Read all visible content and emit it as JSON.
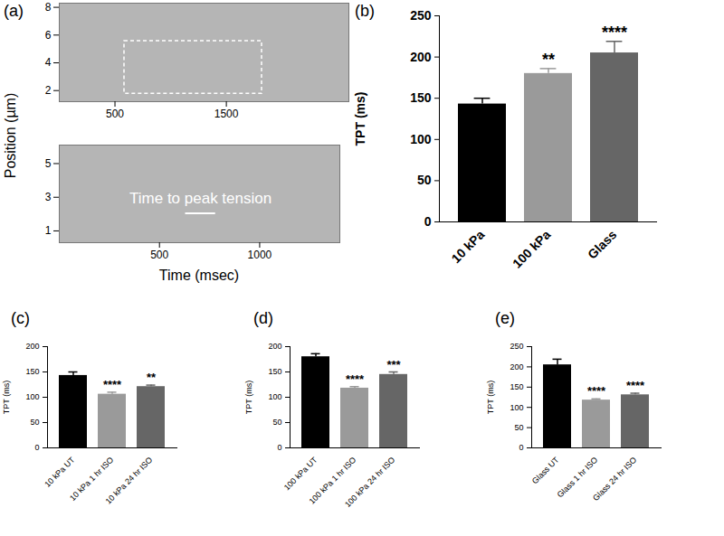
{
  "chart_data": [
    {
      "type": "image",
      "title": "(a)",
      "y_label": "Position (µm)",
      "color": "#b5b5b5",
      "xlim": [
        0,
        2600
      ],
      "xticks": [
        500,
        1500
      ],
      "ylim": [
        1.2,
        8.3
      ],
      "yticks": [
        2,
        4,
        6,
        8
      ]
    },
    {
      "type": "image",
      "x_label": "Time (msec)",
      "color": "#b5b5b5",
      "xlim": [
        0,
        1400
      ],
      "xticks": [
        500,
        1000
      ],
      "ylim": [
        0.3,
        6.1
      ],
      "yticks": [
        1,
        3,
        5
      ],
      "annotations": [
        {
          "text": "Time to peak tension",
          "x1": 630,
          "x2": 780,
          "y": 2.05
        }
      ]
    },
    {
      "type": "bar",
      "title": "(b)",
      "y_label": "TPT (ms)",
      "categories": [
        "10 kPa",
        "100 kPa",
        "Glass"
      ],
      "values": [
        143,
        180,
        205
      ],
      "errors": [
        7,
        6,
        14
      ],
      "significance": [
        null,
        "**",
        "****"
      ],
      "colors": [
        "#000000",
        "#9a9a9a",
        "#666666"
      ],
      "ylim": [
        0,
        250
      ],
      "yticks": [
        0,
        50,
        100,
        150,
        200,
        250
      ]
    },
    {
      "type": "bar",
      "title": "(c)",
      "y_label": "TPT (ms)",
      "categories": [
        "10 kPa UT",
        "10 kPa 1 hr ISO",
        "10 kPa 24 hr ISO"
      ],
      "values": [
        143,
        106,
        121
      ],
      "errors": [
        7,
        4,
        3
      ],
      "significance": [
        null,
        "****",
        "**"
      ],
      "colors": [
        "#000000",
        "#9a9a9a",
        "#666666"
      ],
      "ylim": [
        0,
        200
      ],
      "yticks": [
        0,
        50,
        100,
        150,
        200
      ]
    },
    {
      "type": "bar",
      "title": "(d)",
      "y_label": "TPT (ms)",
      "categories": [
        "100 kPa UT",
        "100 kPa 1 hr ISO",
        "100 kPa 24 hr ISO"
      ],
      "values": [
        180,
        118,
        145
      ],
      "errors": [
        6,
        3,
        5
      ],
      "significance": [
        null,
        "****",
        "***"
      ],
      "colors": [
        "#000000",
        "#9a9a9a",
        "#666666"
      ],
      "ylim": [
        0,
        200
      ],
      "yticks": [
        0,
        50,
        100,
        150,
        200
      ]
    },
    {
      "type": "bar",
      "title": "(e)",
      "y_label": "TPT (ms)",
      "categories": [
        "Glass UT",
        "Glass 1 hr ISO",
        "Glass 24 hr ISO"
      ],
      "values": [
        205,
        118,
        131
      ],
      "errors": [
        14,
        3,
        4
      ],
      "significance": [
        null,
        "****",
        "****"
      ],
      "colors": [
        "#000000",
        "#9a9a9a",
        "#666666"
      ],
      "ylim": [
        0,
        250
      ],
      "yticks": [
        0,
        50,
        100,
        150,
        200,
        250
      ]
    }
  ]
}
